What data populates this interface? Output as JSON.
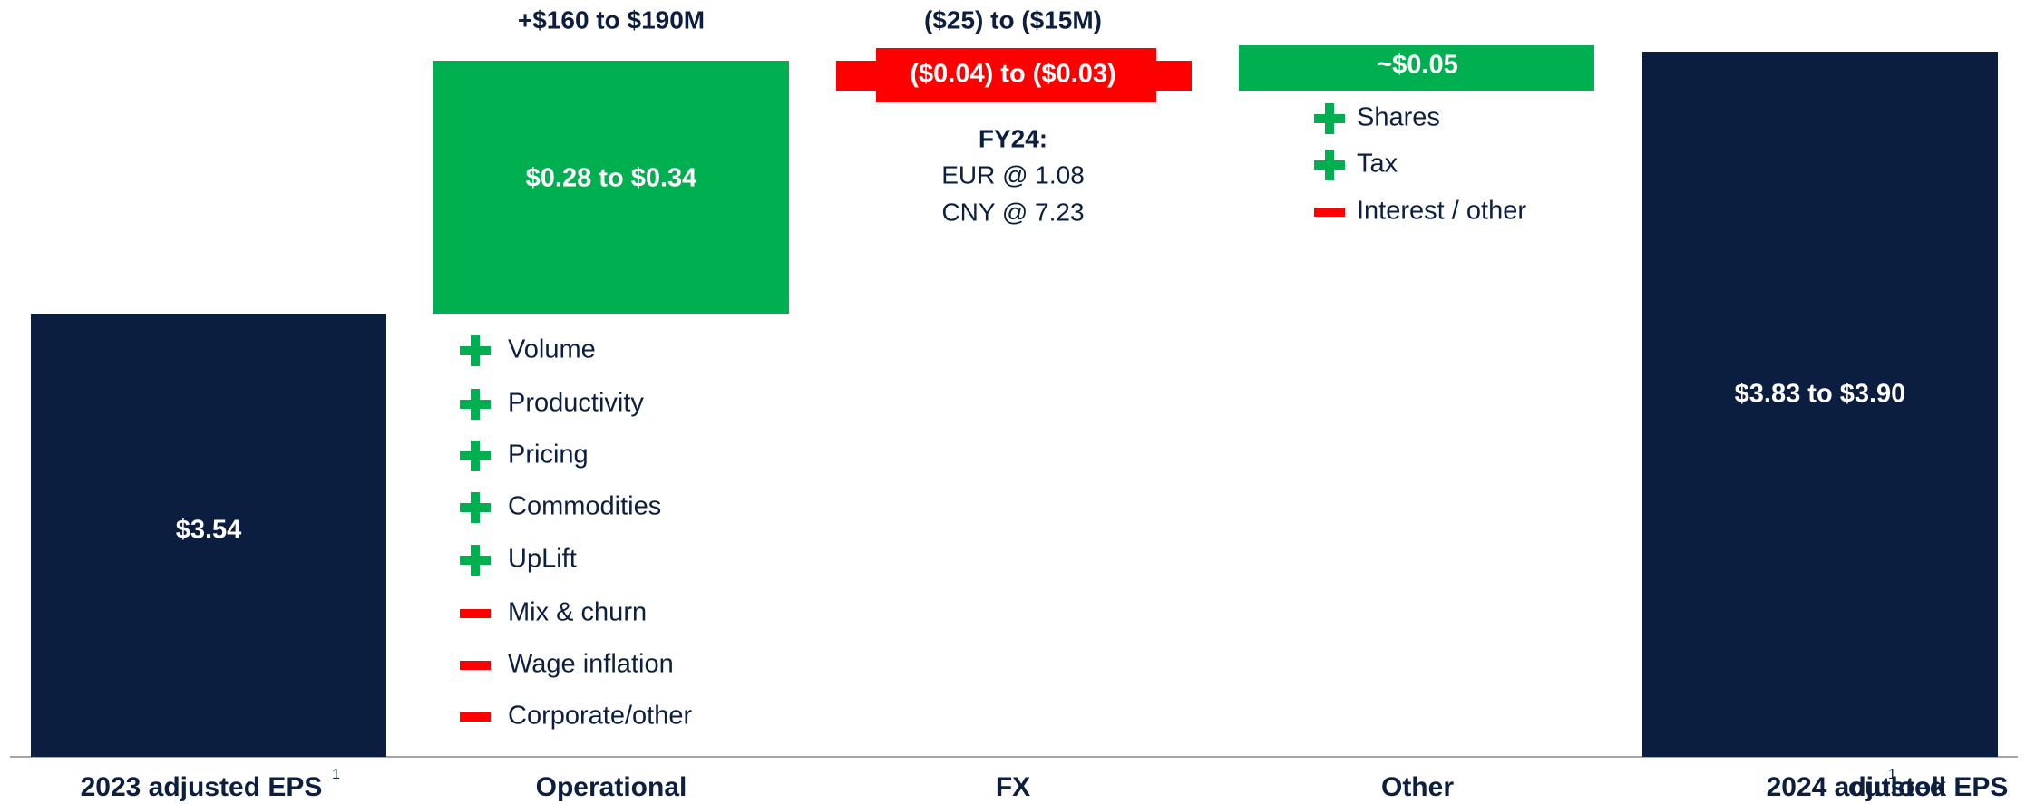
{
  "columns": [
    {
      "label": "2023 adjusted EPS",
      "footnote": "1",
      "value_label": "$3.54"
    },
    {
      "label": "Operational",
      "header": "+$160 to $190M",
      "value_label": "$0.28 to $0.34",
      "drivers": [
        "Volume",
        "Productivity",
        "Pricing",
        "Commodities",
        "UpLift",
        "Mix & churn",
        "Wage inflation",
        "Corporate/other"
      ]
    },
    {
      "label": "FX",
      "header": "($25) to ($15M)",
      "value_label": "($0.04) to ($0.03)",
      "note_title": "FY24:",
      "notes": [
        "EUR @ 1.08",
        "CNY @ 7.23"
      ]
    },
    {
      "label": "Other",
      "value_label": "~$0.05",
      "drivers": [
        "Shares",
        "Tax",
        "Interest / other"
      ]
    },
    {
      "label": "2024 adjusted EPS",
      "footnote": "1",
      "label_suffix": "outlook",
      "value_label": "$3.83 to $3.90"
    }
  ]
}
